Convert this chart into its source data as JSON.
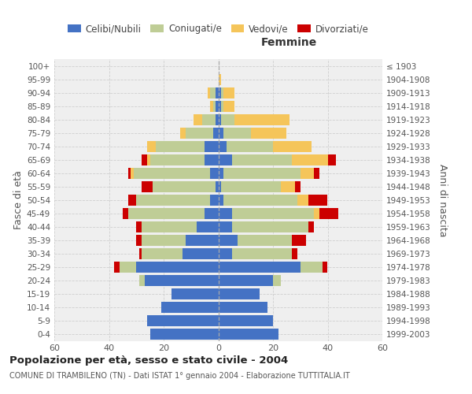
{
  "age_groups": [
    "0-4",
    "5-9",
    "10-14",
    "15-19",
    "20-24",
    "25-29",
    "30-34",
    "35-39",
    "40-44",
    "45-49",
    "50-54",
    "55-59",
    "60-64",
    "65-69",
    "70-74",
    "75-79",
    "80-84",
    "85-89",
    "90-94",
    "95-99",
    "100+"
  ],
  "birth_years": [
    "1999-2003",
    "1994-1998",
    "1989-1993",
    "1984-1988",
    "1979-1983",
    "1974-1978",
    "1969-1973",
    "1964-1968",
    "1959-1963",
    "1954-1958",
    "1949-1953",
    "1944-1948",
    "1939-1943",
    "1934-1938",
    "1929-1933",
    "1924-1928",
    "1919-1923",
    "1914-1918",
    "1909-1913",
    "1904-1908",
    "≤ 1903"
  ],
  "males": {
    "celibi": [
      25,
      26,
      21,
      17,
      27,
      30,
      13,
      12,
      8,
      5,
      3,
      1,
      3,
      5,
      5,
      2,
      1,
      1,
      1,
      0,
      0
    ],
    "coniugati": [
      0,
      0,
      0,
      0,
      2,
      6,
      15,
      16,
      20,
      28,
      27,
      23,
      28,
      20,
      18,
      10,
      5,
      1,
      2,
      0,
      0
    ],
    "vedovi": [
      0,
      0,
      0,
      0,
      0,
      0,
      0,
      0,
      0,
      0,
      0,
      0,
      1,
      1,
      3,
      2,
      3,
      1,
      1,
      0,
      0
    ],
    "divorziati": [
      0,
      0,
      0,
      0,
      0,
      2,
      1,
      2,
      2,
      2,
      3,
      4,
      1,
      2,
      0,
      0,
      0,
      0,
      0,
      0,
      0
    ]
  },
  "females": {
    "nubili": [
      22,
      20,
      18,
      15,
      20,
      30,
      5,
      7,
      5,
      5,
      2,
      1,
      2,
      5,
      3,
      2,
      1,
      1,
      1,
      0,
      0
    ],
    "coniugate": [
      0,
      0,
      0,
      0,
      3,
      8,
      22,
      20,
      28,
      30,
      27,
      22,
      28,
      22,
      17,
      10,
      5,
      1,
      1,
      0,
      0
    ],
    "vedove": [
      0,
      0,
      0,
      0,
      0,
      0,
      0,
      0,
      0,
      2,
      4,
      5,
      5,
      13,
      14,
      13,
      20,
      4,
      4,
      1,
      0
    ],
    "divorziate": [
      0,
      0,
      0,
      0,
      0,
      2,
      2,
      5,
      2,
      7,
      7,
      2,
      2,
      3,
      0,
      0,
      0,
      0,
      0,
      0,
      0
    ]
  },
  "colors": {
    "celibi_nubili": "#4472C4",
    "coniugati": "#BFCD96",
    "vedovi": "#F5C55A",
    "divorziati": "#CC0000"
  },
  "xlim": 60,
  "title": "Popolazione per età, sesso e stato civile - 2004",
  "subtitle": "COMUNE DI TRAMBILENO (TN) - Dati ISTAT 1° gennaio 2004 - Elaborazione TUTTITALIA.IT",
  "ylabel_left": "Fasce di età",
  "ylabel_right": "Anni di nascita",
  "header_right": "Femmine",
  "bg_color": "#efefef",
  "grid_color": "#cccccc"
}
